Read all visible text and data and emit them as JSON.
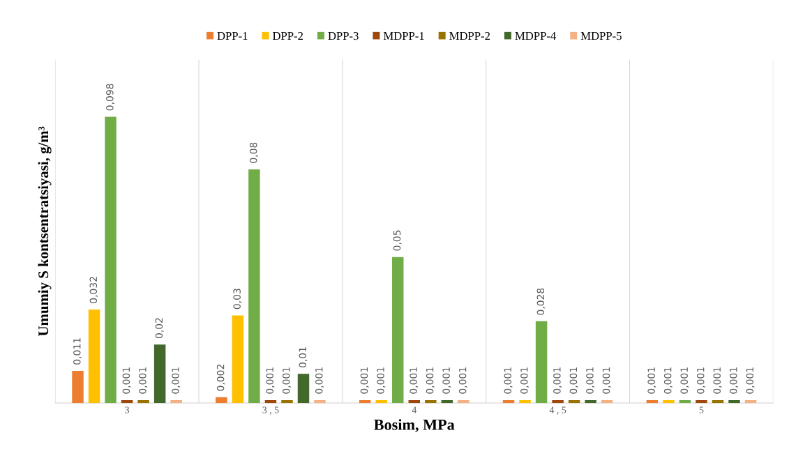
{
  "chart_data": {
    "type": "bar",
    "xlabel": "Bosim, MPa",
    "ylabel": "Umumiy S kontsentratsiyasi, g/m³",
    "categories": [
      "3",
      "3 , 5",
      "4",
      "4 , 5",
      "5"
    ],
    "series": [
      {
        "name": "DPP-1",
        "color": "#ed7d31",
        "values": [
          0.011,
          0.002,
          0.001,
          0.001,
          0.001
        ],
        "value_labels": [
          "0,011",
          "0,002",
          "0,001",
          "0,001",
          "0,001"
        ]
      },
      {
        "name": "DPP-2",
        "color": "#ffc000",
        "values": [
          0.032,
          0.03,
          0.001,
          0.001,
          0.001
        ],
        "value_labels": [
          "0,032",
          "0,03",
          "0,001",
          "0,001",
          "0,001"
        ]
      },
      {
        "name": "DPP-3",
        "color": "#70ad47",
        "values": [
          0.098,
          0.08,
          0.05,
          0.028,
          0.001
        ],
        "value_labels": [
          "0,098",
          "0,08",
          "0,05",
          "0,028",
          "0,001"
        ]
      },
      {
        "name": "MDPP-1",
        "color": "#9e480e",
        "values": [
          0.001,
          0.001,
          0.001,
          0.001,
          0.001
        ],
        "value_labels": [
          "0,001",
          "0,001",
          "0,001",
          "0,001",
          "0,001"
        ]
      },
      {
        "name": "MDPP-2",
        "color": "#997300",
        "values": [
          0.001,
          0.001,
          0.001,
          0.001,
          0.001
        ],
        "value_labels": [
          "0,001",
          "0,001",
          "0,001",
          "0,001",
          "0,001"
        ]
      },
      {
        "name": "MDPP-4",
        "color": "#43682b",
        "values": [
          0.02,
          0.01,
          0.001,
          0.001,
          0.001
        ],
        "value_labels": [
          "0,02",
          "0,01",
          "0,001",
          "0,001",
          "0,001"
        ]
      },
      {
        "name": "MDPP-5",
        "color": "#f4b183",
        "values": [
          0.001,
          0.001,
          0.001,
          0.001,
          0.001
        ],
        "value_labels": [
          "0,001",
          "0,001",
          "0,001",
          "0,001",
          "0,001"
        ]
      }
    ],
    "grid": "x",
    "legend": "top",
    "tick_labels": "x"
  }
}
